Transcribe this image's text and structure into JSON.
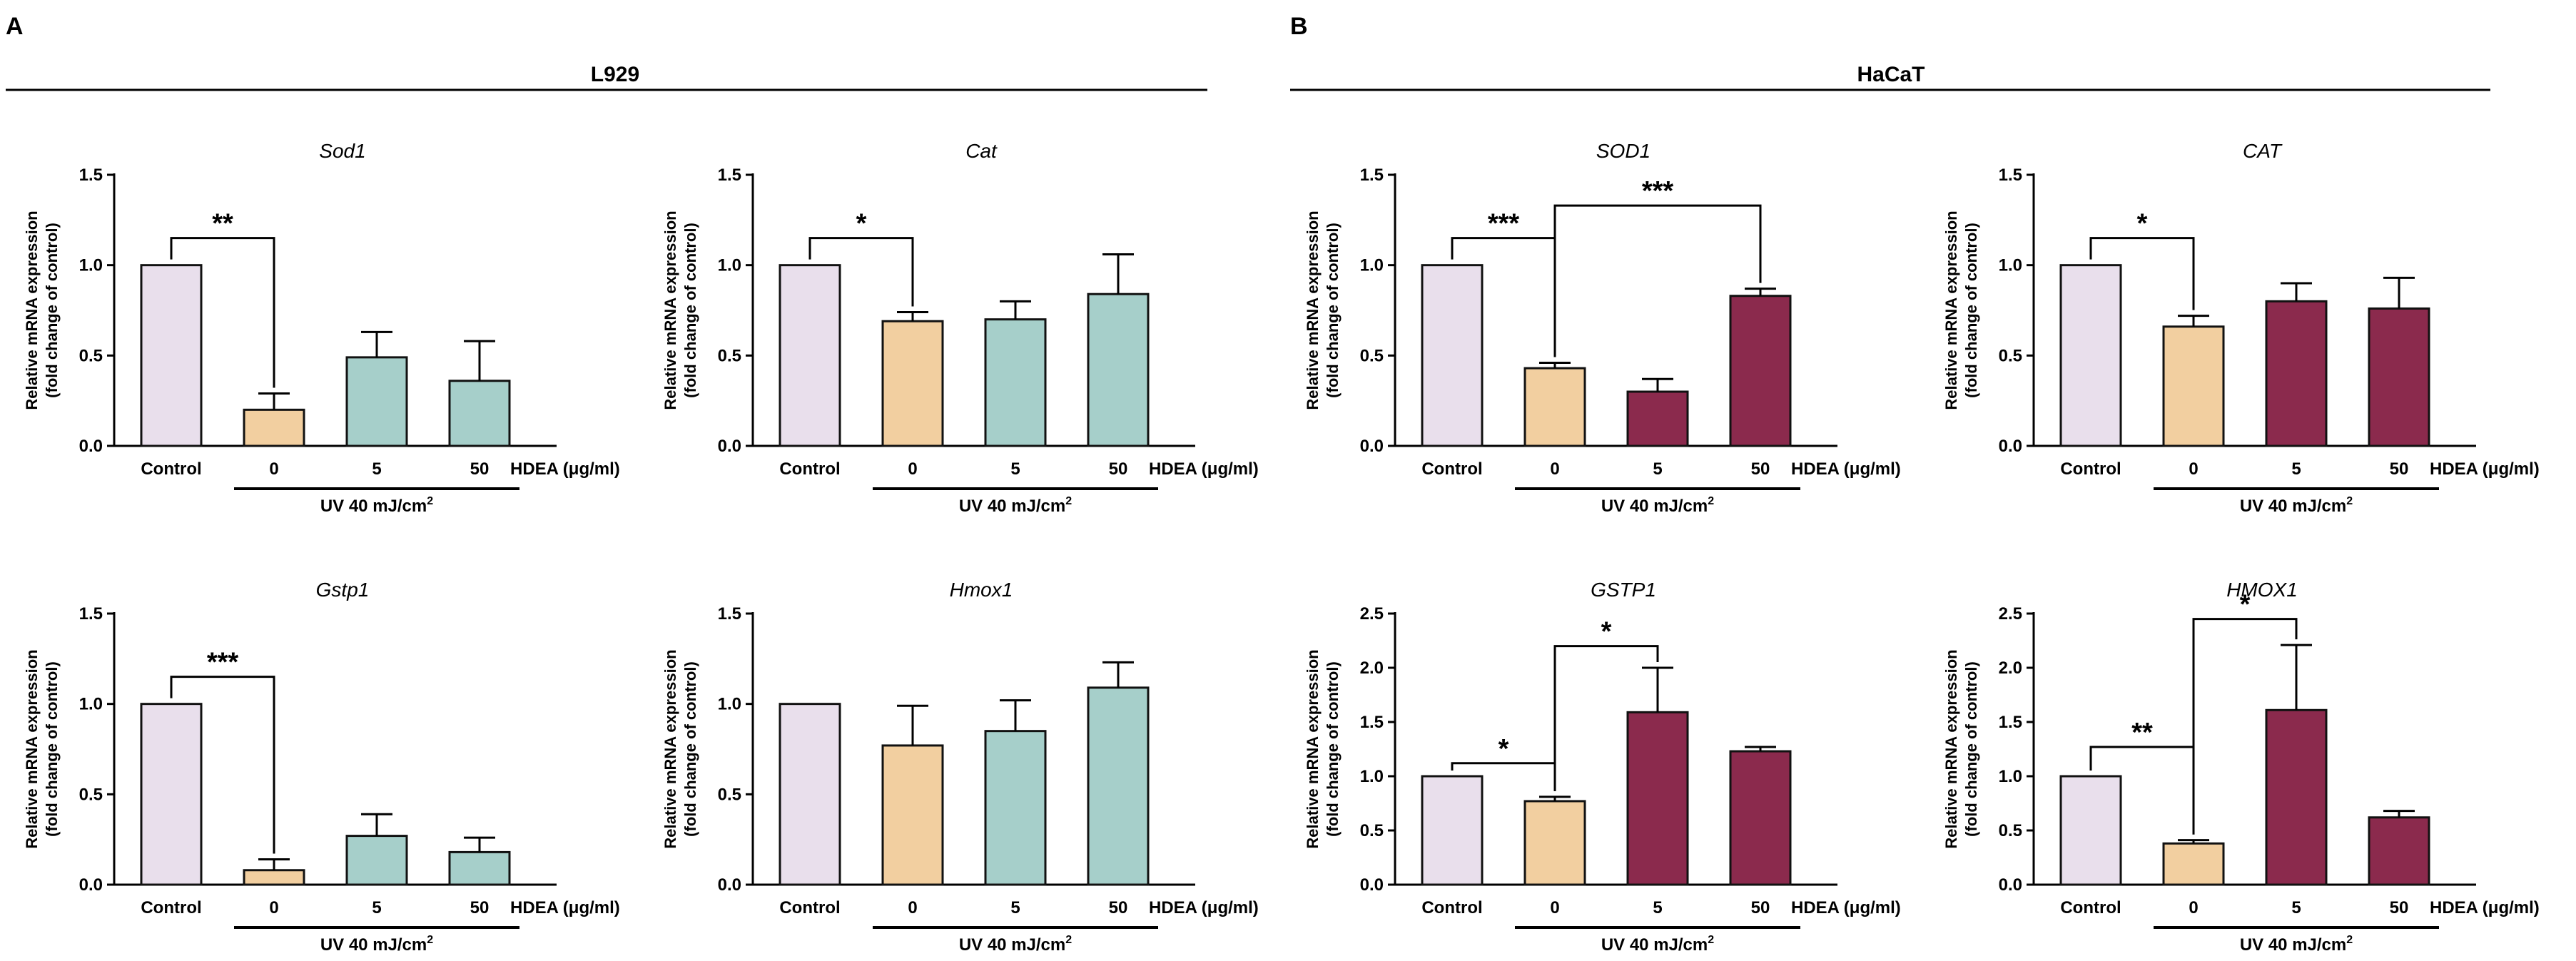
{
  "colors": {
    "control": "#E9DFEC",
    "uv": "#F2CFA0",
    "l929": "#A6CFCA",
    "hacat": "#8B2A4D",
    "stroke": "#111111"
  },
  "panels": [
    {
      "letter": "A",
      "cell_line": "L929"
    },
    {
      "letter": "B",
      "cell_line": "HaCaT"
    }
  ],
  "common": {
    "ylabel_1": "Relative mRNA expression",
    "ylabel_2": "(fold change of control)",
    "uv_prefix": "UV 40 mJ/cm",
    "uv_sup": "2",
    "hdea_label": "HDEA (μg/ml)"
  },
  "chart_data": [
    {
      "type": "bar",
      "panel": "A",
      "title": "Sod1",
      "categories": [
        "Control",
        "0",
        "5",
        "50"
      ],
      "values": [
        1.0,
        0.2,
        0.49,
        0.36
      ],
      "errors": [
        0,
        0.09,
        0.14,
        0.22
      ],
      "ylim": [
        0,
        1.5
      ],
      "yticks": [
        "0.0",
        "0.5",
        "1.0",
        "1.5"
      ],
      "treatment": "l929",
      "sig": [
        {
          "from": 0,
          "to": 1,
          "label": "**",
          "level": 1.15
        }
      ]
    },
    {
      "type": "bar",
      "panel": "A",
      "title": "Cat",
      "categories": [
        "Control",
        "0",
        "5",
        "50"
      ],
      "values": [
        1.0,
        0.69,
        0.7,
        0.84
      ],
      "errors": [
        0,
        0.05,
        0.1,
        0.22
      ],
      "ylim": [
        0,
        1.5
      ],
      "yticks": [
        "0.0",
        "0.5",
        "1.0",
        "1.5"
      ],
      "treatment": "l929",
      "sig": [
        {
          "from": 0,
          "to": 1,
          "label": "*",
          "level": 1.15
        }
      ]
    },
    {
      "type": "bar",
      "panel": "A",
      "title": "Gstp1",
      "categories": [
        "Control",
        "0",
        "5",
        "50"
      ],
      "values": [
        1.0,
        0.08,
        0.27,
        0.18
      ],
      "errors": [
        0,
        0.06,
        0.12,
        0.08
      ],
      "ylim": [
        0,
        1.5
      ],
      "yticks": [
        "0.0",
        "0.5",
        "1.0",
        "1.5"
      ],
      "treatment": "l929",
      "sig": [
        {
          "from": 0,
          "to": 1,
          "label": "***",
          "level": 1.15
        }
      ]
    },
    {
      "type": "bar",
      "panel": "A",
      "title": "Hmox1",
      "categories": [
        "Control",
        "0",
        "5",
        "50"
      ],
      "values": [
        1.0,
        0.77,
        0.85,
        1.09
      ],
      "errors": [
        0,
        0.22,
        0.17,
        0.14
      ],
      "ylim": [
        0,
        1.5
      ],
      "yticks": [
        "0.0",
        "0.5",
        "1.0",
        "1.5"
      ],
      "treatment": "l929",
      "sig": []
    },
    {
      "type": "bar",
      "panel": "B",
      "title": "SOD1",
      "categories": [
        "Control",
        "0",
        "5",
        "50"
      ],
      "values": [
        1.0,
        0.43,
        0.3,
        0.83
      ],
      "errors": [
        0,
        0.03,
        0.07,
        0.04
      ],
      "ylim": [
        0,
        1.5
      ],
      "yticks": [
        "0.0",
        "0.5",
        "1.0",
        "1.5"
      ],
      "treatment": "hacat",
      "sig": [
        {
          "from": 0,
          "to": 1,
          "label": "***",
          "level": 1.15
        },
        {
          "from": 1,
          "to": 3,
          "label": "***",
          "level": 1.33
        }
      ]
    },
    {
      "type": "bar",
      "panel": "B",
      "title": "CAT",
      "categories": [
        "Control",
        "0",
        "5",
        "50"
      ],
      "values": [
        1.0,
        0.66,
        0.8,
        0.76
      ],
      "errors": [
        0,
        0.06,
        0.1,
        0.17
      ],
      "ylim": [
        0,
        1.5
      ],
      "yticks": [
        "0.0",
        "0.5",
        "1.0",
        "1.5"
      ],
      "treatment": "hacat",
      "sig": [
        {
          "from": 0,
          "to": 1,
          "label": "*",
          "level": 1.15
        }
      ]
    },
    {
      "type": "bar",
      "panel": "B",
      "title": "GSTP1",
      "categories": [
        "Control",
        "0",
        "5",
        "50"
      ],
      "values": [
        1.0,
        0.77,
        1.59,
        1.23
      ],
      "errors": [
        0,
        0.04,
        0.41,
        0.04
      ],
      "ylim": [
        0,
        2.5
      ],
      "yticks": [
        "0.0",
        "0.5",
        "1.0",
        "1.5",
        "2.0",
        "2.5"
      ],
      "treatment": "hacat",
      "sig": [
        {
          "from": 0,
          "to": 1,
          "label": "*",
          "level": 1.12
        },
        {
          "from": 1,
          "to": 2,
          "label": "*",
          "level": 2.2
        }
      ]
    },
    {
      "type": "bar",
      "panel": "B",
      "title": "HMOX1",
      "categories": [
        "Control",
        "0",
        "5",
        "50"
      ],
      "values": [
        1.0,
        0.38,
        1.61,
        0.62
      ],
      "errors": [
        0,
        0.03,
        0.6,
        0.06
      ],
      "ylim": [
        0,
        2.5
      ],
      "yticks": [
        "0.0",
        "0.5",
        "1.0",
        "1.5",
        "2.0",
        "2.5"
      ],
      "treatment": "hacat",
      "sig": [
        {
          "from": 0,
          "to": 1,
          "label": "**",
          "level": 1.27
        },
        {
          "from": 1,
          "to": 2,
          "label": "*",
          "level": 2.45
        }
      ]
    }
  ]
}
